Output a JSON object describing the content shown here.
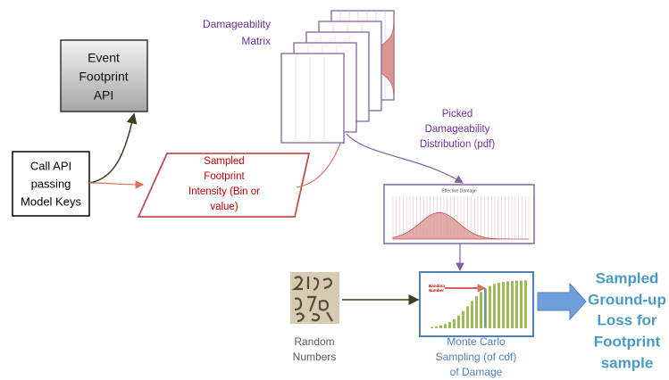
{
  "event_footprint_api": {
    "lines": [
      "Event",
      "Footprint",
      "API"
    ]
  },
  "call_api": {
    "lines": [
      "Call API",
      "passing",
      "Model Keys"
    ]
  },
  "sampled_intensity": {
    "lines": [
      "Sampled",
      "Footprint",
      "Intensity (Bin or",
      "value)"
    ]
  },
  "damageability_matrix": {
    "lines": [
      "Damageability",
      "Matrix"
    ]
  },
  "picked_distribution": {
    "lines": [
      "Picked",
      "Damageability",
      "Distribution (pdf)"
    ]
  },
  "pdf_chart": {
    "title": "Effective Damage"
  },
  "cdf_chart": {
    "annotation": [
      "Random",
      "Number"
    ]
  },
  "random_numbers": {
    "lines": [
      "Random",
      "Numbers"
    ]
  },
  "monte_carlo": {
    "lines": [
      "Monte Carlo",
      "Sampling (of cdf)",
      "of Damage"
    ]
  },
  "output": {
    "lines": [
      "Sampled",
      "Ground-up",
      "Loss for",
      "Footprint",
      "sample"
    ]
  }
}
